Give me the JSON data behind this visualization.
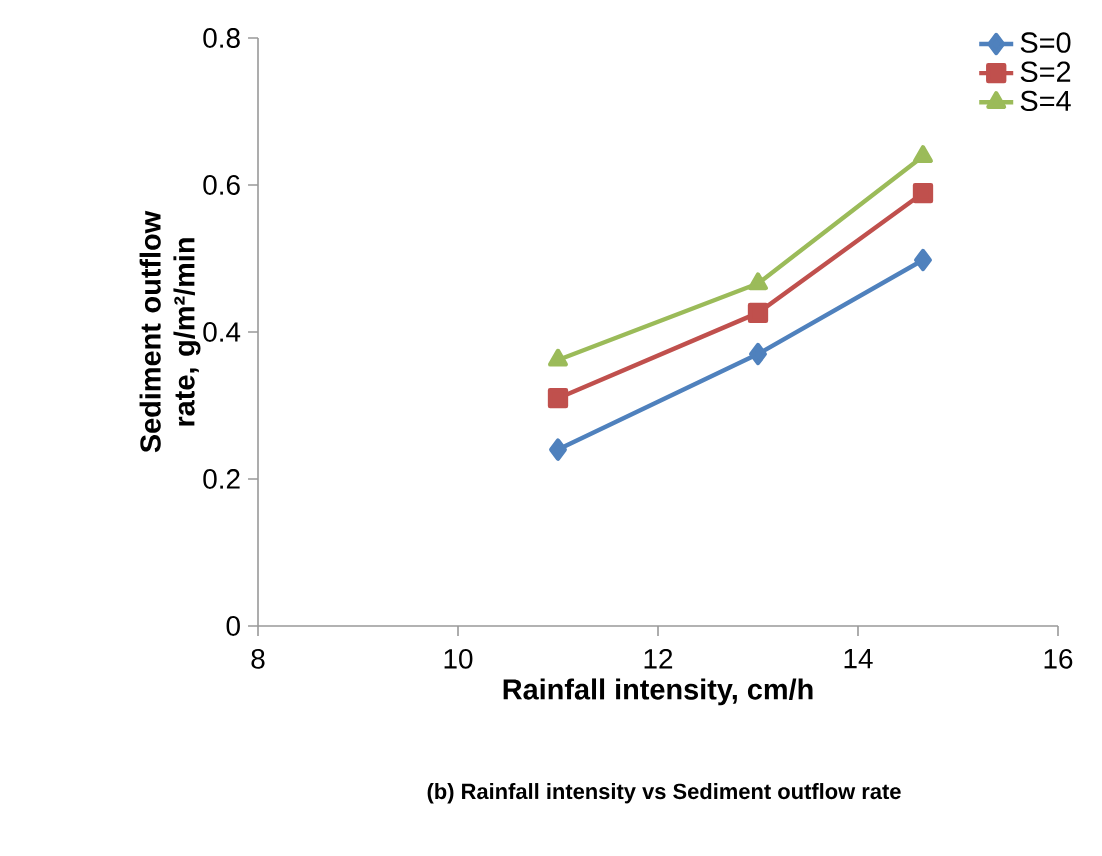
{
  "chart_data": {
    "type": "line",
    "xlabel": "Rainfall intensity, cm/h",
    "ylabel": "Sediment outflow rate, g/m²/min",
    "annotations": [
      "(b) Rainfall intensity vs Sediment outflow rate"
    ],
    "xlim": [
      8,
      16
    ],
    "xticks": [
      8,
      10,
      12,
      14,
      16
    ],
    "ylim": [
      0,
      0.8
    ],
    "yticks": [
      0,
      0.2,
      0.4,
      0.6,
      0.8
    ],
    "grid": false,
    "legend": "top right",
    "line_style": "solid",
    "series": [
      {
        "name": "S=0",
        "color": "#4f81bd",
        "marker": "diamond",
        "x": [
          11,
          13,
          14.65
        ],
        "values": [
          0.24,
          0.37,
          0.498
        ]
      },
      {
        "name": "S=2",
        "color": "#c0504d",
        "marker": "square",
        "x": [
          11,
          13,
          14.65
        ],
        "values": [
          0.31,
          0.426,
          0.589
        ]
      },
      {
        "name": "S=4",
        "color": "#9bbb59",
        "marker": "triangle",
        "x": [
          11,
          13,
          14.65
        ],
        "values": [
          0.362,
          0.466,
          0.639
        ]
      }
    ]
  }
}
